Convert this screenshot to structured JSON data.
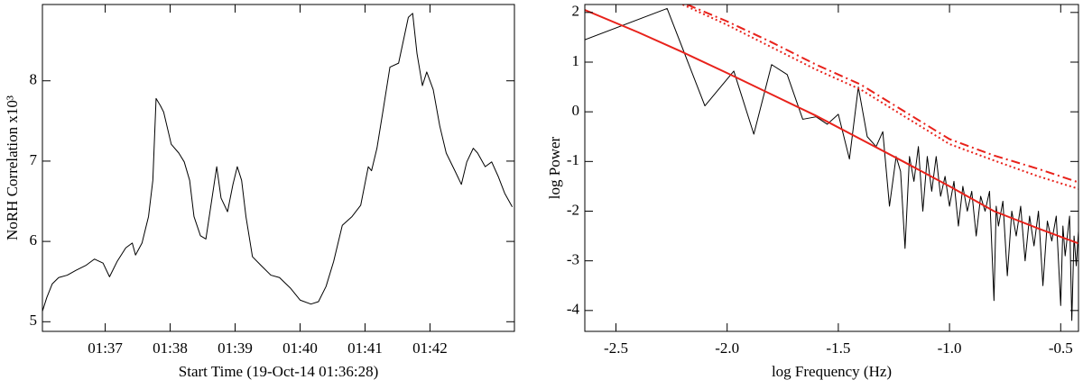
{
  "chart_data": [
    {
      "type": "line",
      "xlabel": "Start Time (19-Oct-14 01:36:28)",
      "ylabel": "NoRH Correlation x10³",
      "xlim": [
        2,
        438
      ],
      "ylim": [
        4.88,
        8.95
      ],
      "xticks": [
        {
          "value": 60,
          "label": "01:37"
        },
        {
          "value": 120,
          "label": "01:38"
        },
        {
          "value": 180,
          "label": "01:39"
        },
        {
          "value": 240,
          "label": "01:40"
        },
        {
          "value": 300,
          "label": "01:41"
        },
        {
          "value": 360,
          "label": "01:42"
        }
      ],
      "yticks": [
        5,
        6,
        7,
        8
      ],
      "color": "#000000",
      "x": [
        2,
        6,
        11,
        17,
        25,
        33,
        42,
        50,
        58,
        64,
        71,
        79,
        85,
        88,
        94,
        100,
        104,
        107,
        111,
        114,
        121,
        128,
        133,
        138,
        142,
        148,
        153,
        158,
        163,
        167,
        173,
        178,
        182,
        186,
        190,
        196,
        204,
        213,
        221,
        231,
        240,
        250,
        257,
        264,
        271,
        279,
        288,
        296,
        303,
        306,
        311,
        317,
        323,
        331,
        340,
        344,
        348,
        353,
        357,
        363,
        369,
        375,
        383,
        389,
        394,
        400,
        404,
        411,
        417,
        423,
        429,
        436
      ],
      "values": [
        5.13,
        5.3,
        5.47,
        5.55,
        5.58,
        5.64,
        5.7,
        5.78,
        5.73,
        5.56,
        5.75,
        5.92,
        5.98,
        5.83,
        5.98,
        6.31,
        6.76,
        7.78,
        7.69,
        7.61,
        7.21,
        7.1,
        6.99,
        6.76,
        6.31,
        6.07,
        6.03,
        6.48,
        6.93,
        6.54,
        6.37,
        6.71,
        6.93,
        6.76,
        6.31,
        5.81,
        5.7,
        5.58,
        5.55,
        5.42,
        5.27,
        5.22,
        5.25,
        5.44,
        5.75,
        6.2,
        6.31,
        6.45,
        6.93,
        6.88,
        7.16,
        7.66,
        8.17,
        8.22,
        8.79,
        8.84,
        8.34,
        7.94,
        8.11,
        7.89,
        7.44,
        7.1,
        6.88,
        6.71,
        6.99,
        7.16,
        7.1,
        6.93,
        6.99,
        6.81,
        6.6,
        6.43
      ]
    },
    {
      "type": "line",
      "xlabel": "log Frequency (Hz)",
      "ylabel": "log Power",
      "xlim": [
        -2.64,
        -0.42
      ],
      "ylim": [
        -4.42,
        2.16
      ],
      "xticks": [
        -2.5,
        {
          "value": -2,
          "label": "-2.0"
        },
        -1.5,
        {
          "value": -1,
          "label": "-1.0"
        },
        -0.5
      ],
      "yticks": [
        2,
        1,
        0,
        -1,
        -2,
        -3,
        -4
      ],
      "series": [
        {
          "color": "#000000",
          "linestyle": "solid",
          "x": [
            -2.64,
            -2.27,
            -2.1,
            -1.97,
            -1.88,
            -1.8,
            -1.73,
            -1.66,
            -1.6,
            -1.55,
            -1.5,
            -1.45,
            -1.41,
            -1.37,
            -1.33,
            -1.3,
            -1.27,
            -1.24,
            -1.22,
            -1.2,
            -1.18,
            -1.16,
            -1.14,
            -1.12,
            -1.1,
            -1.08,
            -1.06,
            -1.04,
            -1.02,
            -1.0,
            -0.98,
            -0.96,
            -0.94,
            -0.92,
            -0.9,
            -0.88,
            -0.86,
            -0.84,
            -0.82,
            -0.8,
            -0.79,
            -0.78,
            -0.76,
            -0.74,
            -0.72,
            -0.7,
            -0.68,
            -0.66,
            -0.64,
            -0.62,
            -0.6,
            -0.58,
            -0.56,
            -0.54,
            -0.52,
            -0.5,
            -0.49,
            -0.48,
            -0.46,
            -0.45,
            -0.44,
            -0.43,
            -0.42
          ],
          "values": [
            1.45,
            2.08,
            0.12,
            0.82,
            -0.45,
            0.95,
            0.75,
            -0.15,
            -0.1,
            -0.25,
            -0.05,
            -0.95,
            0.5,
            -0.5,
            -0.7,
            -0.4,
            -1.9,
            -0.9,
            -1.2,
            -2.75,
            -0.9,
            -1.4,
            -0.7,
            -2.0,
            -0.9,
            -1.6,
            -0.9,
            -1.7,
            -1.3,
            -1.9,
            -1.4,
            -2.3,
            -1.5,
            -2.0,
            -1.6,
            -2.5,
            -1.7,
            -2.0,
            -1.6,
            -3.8,
            -1.9,
            -2.3,
            -1.8,
            -3.3,
            -2.0,
            -2.5,
            -1.9,
            -3.0,
            -2.1,
            -2.7,
            -2.0,
            -3.5,
            -2.2,
            -2.6,
            -2.1,
            -3.9,
            -2.3,
            -2.9,
            -2.1,
            -4.2,
            -2.5,
            -3.1,
            -2.4
          ]
        },
        {
          "color": "#e8221b",
          "linestyle": "solid",
          "x": [
            -2.64,
            -2.4,
            -2.2,
            -2.0,
            -1.8,
            -1.6,
            -1.4,
            -1.2,
            -1.0,
            -0.8,
            -0.6,
            -0.42
          ],
          "values": [
            2.05,
            1.6,
            1.2,
            0.78,
            0.35,
            -0.08,
            -0.55,
            -1.02,
            -1.5,
            -2.0,
            -2.35,
            -2.65
          ]
        },
        {
          "color": "#e8221b",
          "linestyle": "dashdot",
          "x": [
            -2.18,
            -2.0,
            -1.8,
            -1.6,
            -1.4,
            -1.2,
            -1.0,
            -0.8,
            -0.6,
            -0.42
          ],
          "values": [
            2.16,
            1.82,
            1.4,
            0.95,
            0.55,
            0.0,
            -0.55,
            -0.88,
            -1.15,
            -1.42
          ]
        },
        {
          "color": "#e8221b",
          "linestyle": "dotted",
          "x": [
            -2.2,
            -2.0,
            -1.8,
            -1.6,
            -1.4,
            -1.2,
            -1.0,
            -0.8,
            -0.6,
            -0.42
          ],
          "values": [
            2.16,
            1.75,
            1.3,
            0.85,
            0.45,
            -0.1,
            -0.65,
            -0.98,
            -1.3,
            -1.55
          ]
        }
      ]
    }
  ]
}
